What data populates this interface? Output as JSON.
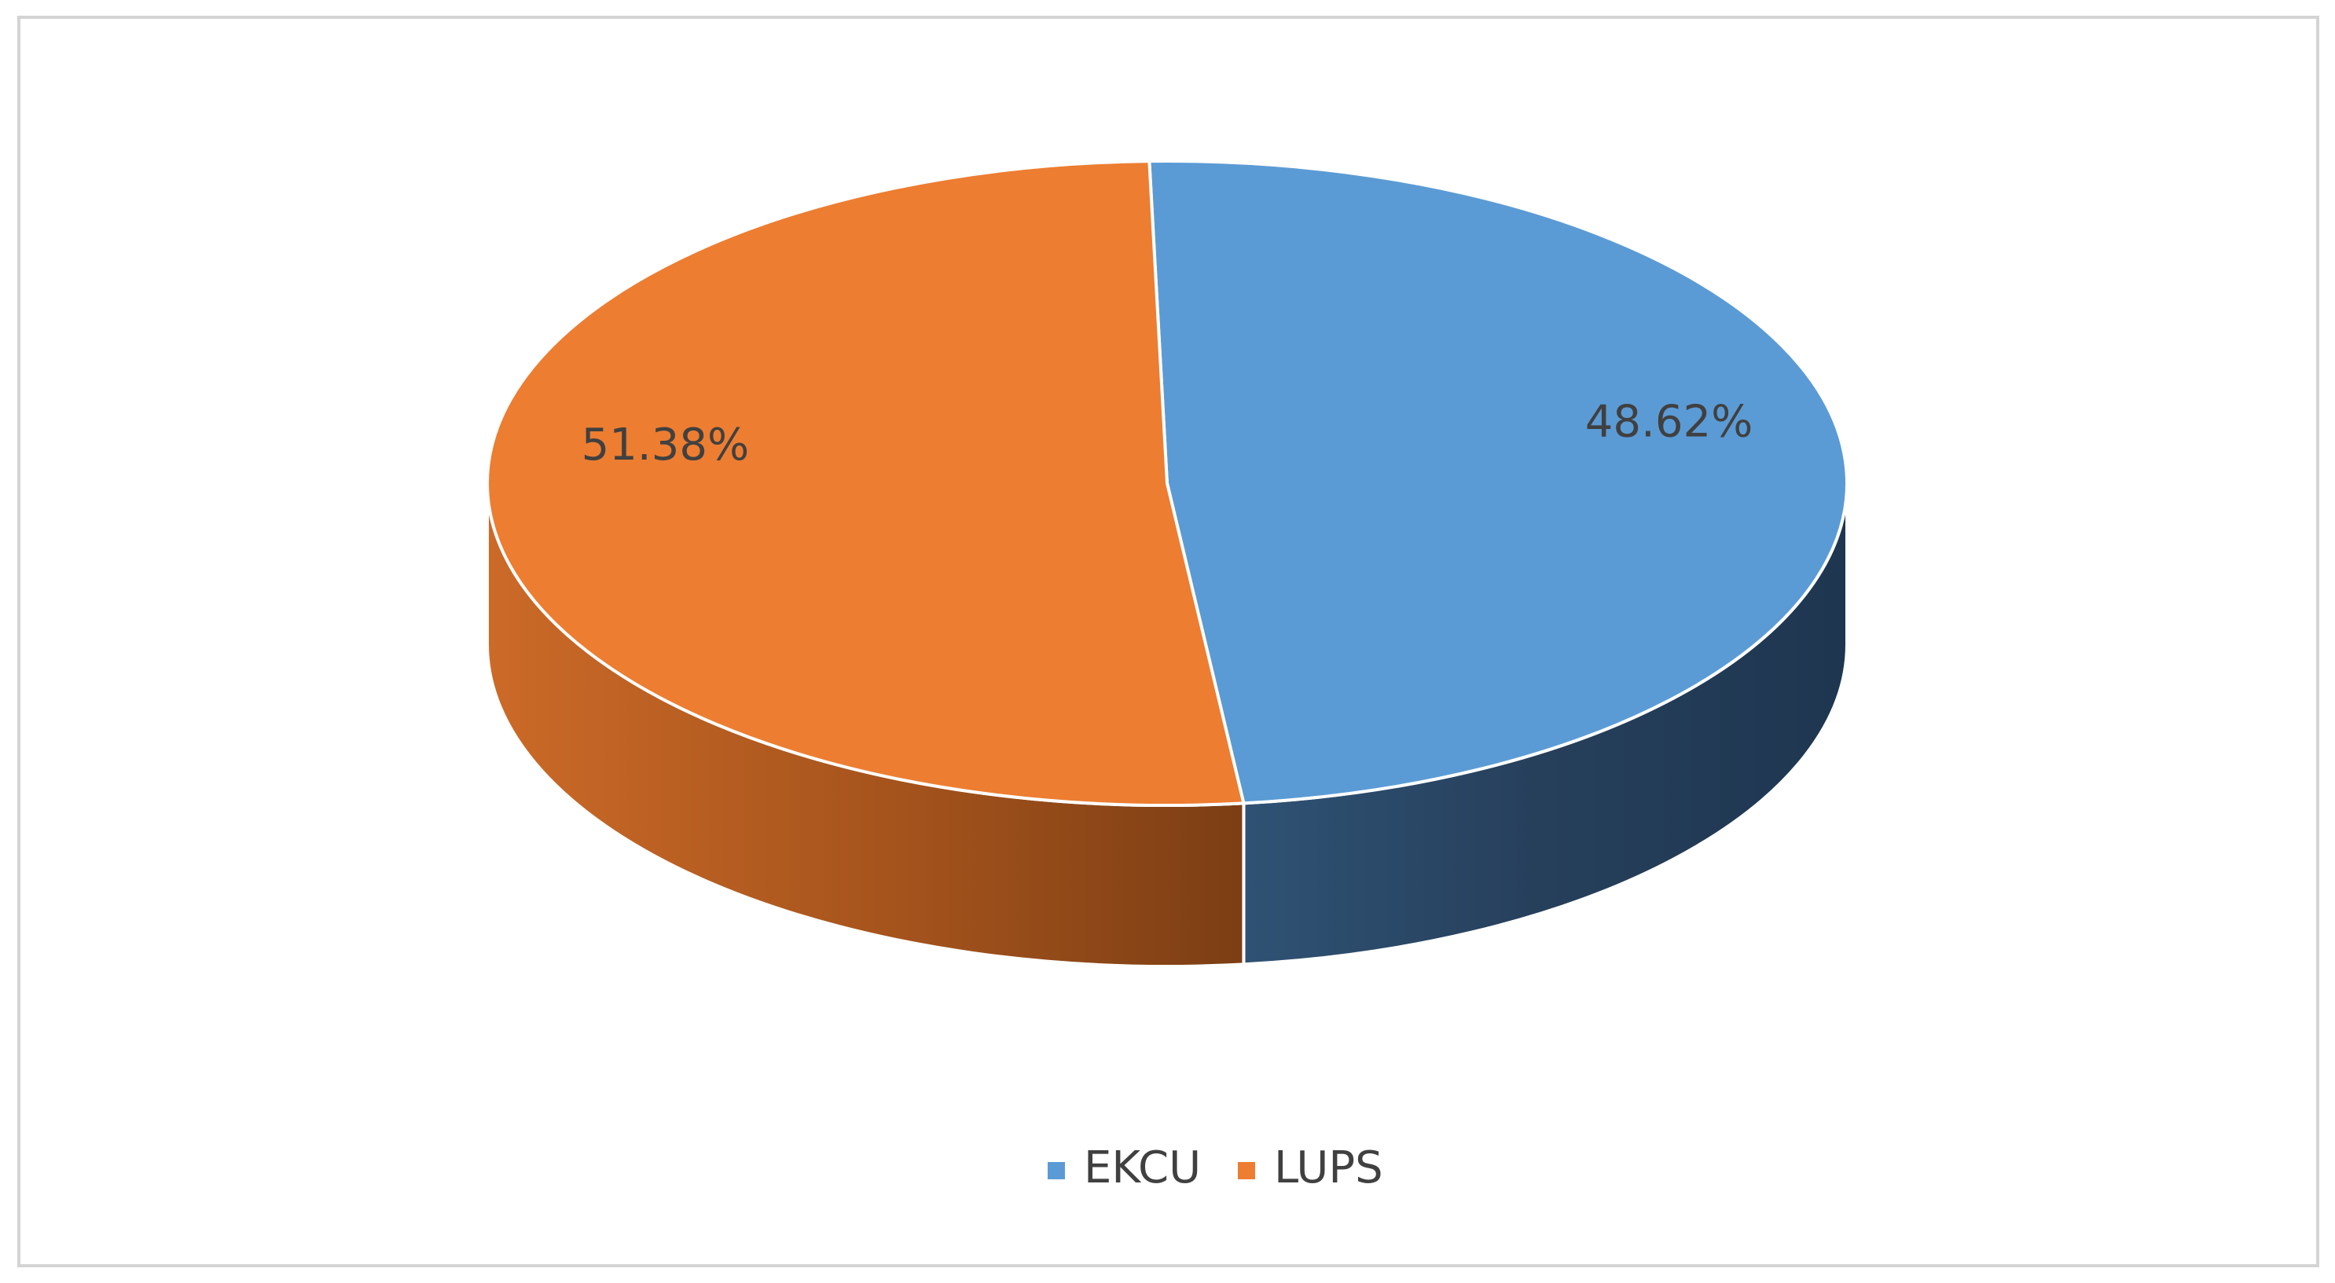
{
  "chart_data": {
    "type": "pie",
    "style": "3d",
    "title": "",
    "slices": [
      {
        "name": "EKCU",
        "value": 48.62,
        "label": "48.62%",
        "color": "#5b9bd5",
        "side_color": "#2c4a6b"
      },
      {
        "name": "LUPS",
        "value": 51.38,
        "label": "51.38%",
        "color": "#ed7d31",
        "side_color": "#a4531c"
      }
    ],
    "legend": {
      "position": "bottom",
      "entries": [
        "EKCU",
        "LUPS"
      ]
    }
  }
}
